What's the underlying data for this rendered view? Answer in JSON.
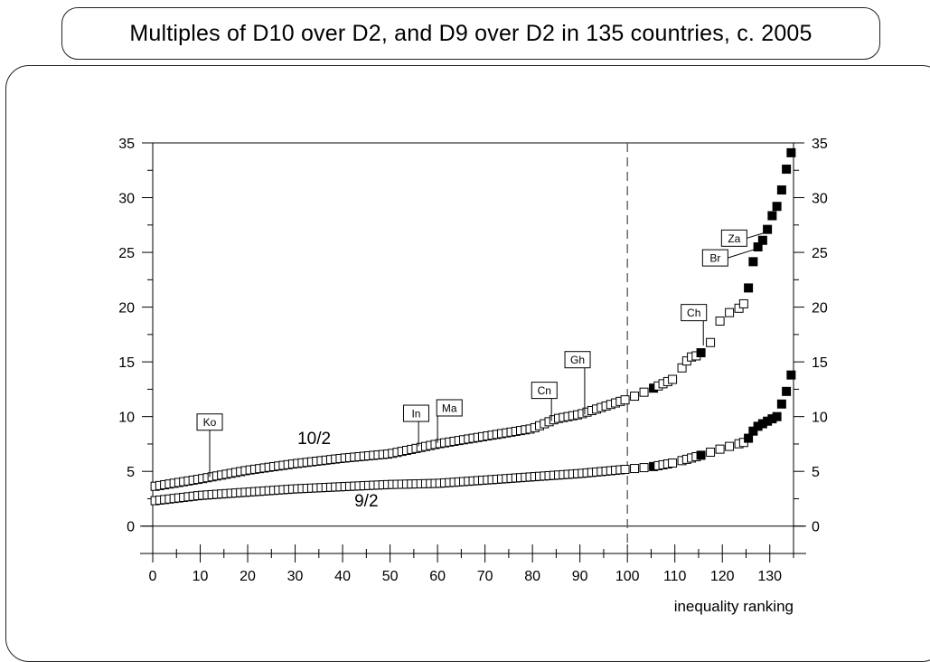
{
  "title": "Multiples of D10 over D2, and D9 over D2 in 135 countries, c. 2005",
  "chart_data": {
    "type": "scatter",
    "title": "Multiples of D10 over D2, and D9 over D2 in 135 countries, c. 2005",
    "xlabel": "inequality ranking",
    "ylabel": "",
    "xlim": [
      0,
      135
    ],
    "ylim": [
      -2.5,
      35
    ],
    "x_ticks": [
      "0",
      "10",
      "20",
      "30",
      "40",
      "50",
      "60",
      "70",
      "80",
      "90",
      "100",
      "110",
      "120",
      "130"
    ],
    "y_ticks": [
      "0",
      "5",
      "10",
      "15",
      "20",
      "25",
      "30",
      "35"
    ],
    "reference_line": {
      "x": 100,
      "style": "dashed"
    },
    "legend": "none",
    "series_labels": [
      {
        "text": "10/2",
        "x": 34,
        "y": 7.5
      },
      {
        "text": "9/2",
        "x": 45,
        "y": 1.8
      }
    ],
    "series": [
      {
        "label": "10/2",
        "ctrl_x": [
          0,
          10,
          20,
          30,
          40,
          50,
          60,
          70,
          80,
          85,
          90,
          100,
          105,
          110,
          113,
          115,
          118,
          120,
          123,
          125,
          126,
          127,
          128,
          129,
          130,
          131,
          132,
          133,
          134,
          135
        ],
        "ctrl_y": [
          3.6,
          4.3,
          5.1,
          5.7,
          6.2,
          6.6,
          7.5,
          8.2,
          8.9,
          9.8,
          10.2,
          11.6,
          12.5,
          13.5,
          15.4,
          15.6,
          17.0,
          19.3,
          19.7,
          20.5,
          23.0,
          25.3,
          25.7,
          26.5,
          27.7,
          29.0,
          29.4,
          32.0,
          33.2,
          35.0
        ]
      },
      {
        "label": "9/2",
        "ctrl_x": [
          0,
          10,
          20,
          30,
          40,
          50,
          60,
          70,
          80,
          90,
          100,
          105,
          110,
          115,
          120,
          125,
          127,
          130,
          132,
          133,
          134,
          135
        ],
        "ctrl_y": [
          2.3,
          2.8,
          3.1,
          3.4,
          3.6,
          3.8,
          3.9,
          4.2,
          4.5,
          4.8,
          5.2,
          5.4,
          5.8,
          6.4,
          7.1,
          7.7,
          9.0,
          9.7,
          10.1,
          12.2,
          12.4,
          15.2
        ]
      }
    ],
    "annotations": [
      {
        "text": "Ko",
        "x": 12,
        "y": 4.5
      },
      {
        "text": "In",
        "x": 56,
        "y": 7.3
      },
      {
        "text": "Ma",
        "x": 60,
        "y": 7.6
      },
      {
        "text": "Cn",
        "x": 84,
        "y": 9.6
      },
      {
        "text": "Gh",
        "x": 91,
        "y": 10.2
      },
      {
        "text": "Ch",
        "x": 116,
        "y": 16.5
      },
      {
        "text": "Br",
        "x": 127,
        "y": 25.3
      },
      {
        "text": "Za",
        "x": 129,
        "y": 26.8
      }
    ]
  }
}
